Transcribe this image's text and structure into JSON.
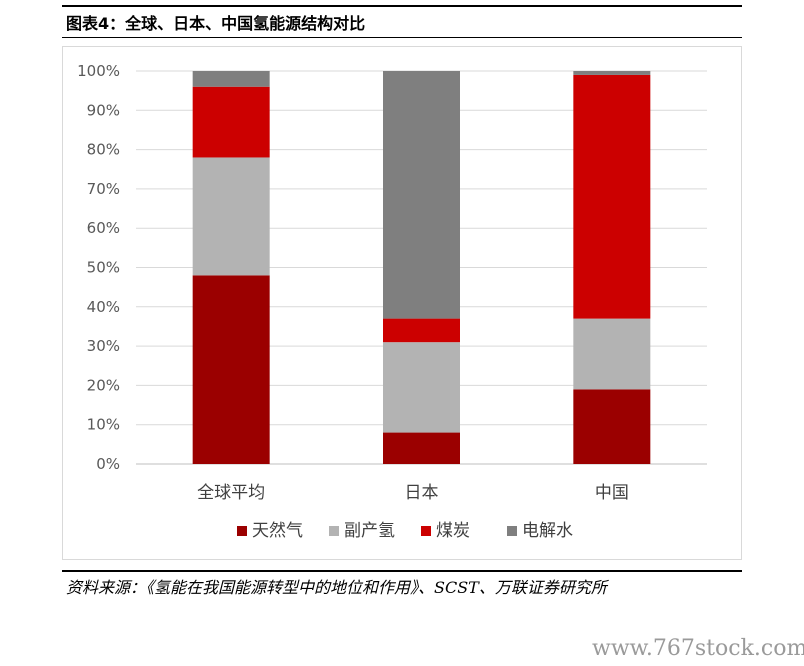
{
  "caption": "图表4：全球、日本、中国氢能源结构对比",
  "source": "资料来源：《氢能在我国能源转型中的地位和作用》、SCST、万联证券研究所",
  "watermark": "www.767stock.com",
  "chart_data": {
    "type": "bar",
    "stacked": true,
    "categories": [
      "全球平均",
      "日本",
      "中国"
    ],
    "series": [
      {
        "name": "天然气",
        "color": "#9b0000",
        "values": [
          48,
          8,
          19
        ]
      },
      {
        "name": "副产氢",
        "color": "#b3b3b3",
        "values": [
          30,
          23,
          18
        ]
      },
      {
        "name": "煤炭",
        "color": "#cc0000",
        "values": [
          18,
          6,
          62
        ]
      },
      {
        "name": "电解水",
        "color": "#7f7f7f",
        "values": [
          4,
          63,
          1
        ]
      }
    ],
    "ylim": [
      0,
      100
    ],
    "yticks": [
      "0%",
      "10%",
      "20%",
      "30%",
      "40%",
      "50%",
      "60%",
      "70%",
      "80%",
      "90%",
      "100%"
    ],
    "grid": true,
    "legend": "bottom"
  }
}
